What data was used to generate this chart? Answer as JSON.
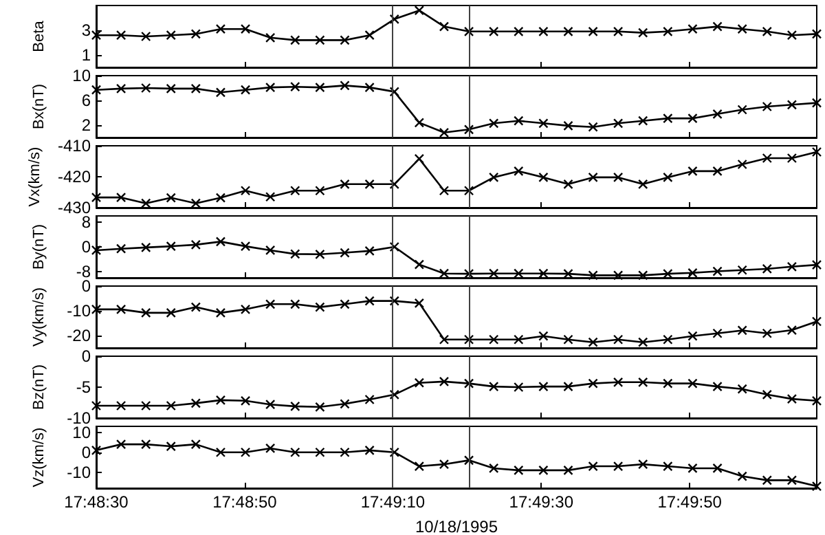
{
  "chart_data": [
    {
      "type": "line",
      "ylabel": "Beta",
      "color": "#000000",
      "marker": "cross",
      "line_style": "solid",
      "tick_labels": "y",
      "xlim": [
        17.80833,
        17.83532
      ],
      "xticks": [
        {
          "value": 17.80833,
          "label": null
        },
        {
          "value": 17.81389,
          "label": null
        },
        {
          "value": 17.81944,
          "label": null
        },
        {
          "value": 17.825,
          "label": null
        },
        {
          "value": 17.83056,
          "label": null
        }
      ],
      "ylim": [
        0,
        5
      ],
      "yticks": [
        1,
        3
      ],
      "x": [
        17.80833,
        17.80926,
        17.81019,
        17.81113,
        17.81206,
        17.81299,
        17.81392,
        17.81485,
        17.81578,
        17.81671,
        17.81764,
        17.81857,
        17.8195,
        17.82043,
        17.82136,
        17.82229,
        17.82322,
        17.82415,
        17.82508,
        17.82601,
        17.82694,
        17.82788,
        17.82881,
        17.82974,
        17.83067,
        17.8316,
        17.83253,
        17.83346,
        17.83439,
        17.83532
      ],
      "values": [
        2.6,
        2.6,
        2.5,
        2.6,
        2.7,
        3.1,
        3.1,
        2.4,
        2.2,
        2.2,
        2.2,
        2.6,
        3.9,
        4.6,
        3.3,
        2.9,
        2.9,
        2.9,
        2.9,
        2.9,
        2.9,
        2.9,
        2.8,
        2.9,
        3.1,
        3.3,
        3.1,
        2.9,
        2.6,
        2.7
      ],
      "ref_lines": [
        {
          "axis": "x",
          "value": 17.81942,
          "color": "#404040"
        },
        {
          "axis": "x",
          "value": 17.82231,
          "color": "#404040"
        }
      ]
    },
    {
      "type": "line",
      "ylabel": "Bx(nT)",
      "color": "#000000",
      "marker": "cross",
      "line_style": "solid",
      "tick_labels": "y",
      "xlim": [
        17.80833,
        17.83532
      ],
      "xticks": [
        {
          "value": 17.80833,
          "label": null
        },
        {
          "value": 17.81389,
          "label": null
        },
        {
          "value": 17.81944,
          "label": null
        },
        {
          "value": 17.825,
          "label": null
        },
        {
          "value": 17.83056,
          "label": null
        }
      ],
      "ylim": [
        0,
        10
      ],
      "yticks": [
        2,
        6,
        10
      ],
      "x": [
        17.80833,
        17.80926,
        17.81019,
        17.81113,
        17.81206,
        17.81299,
        17.81392,
        17.81485,
        17.81578,
        17.81671,
        17.81764,
        17.81857,
        17.8195,
        17.82043,
        17.82136,
        17.82229,
        17.82322,
        17.82415,
        17.82508,
        17.82601,
        17.82694,
        17.82788,
        17.82881,
        17.82974,
        17.83067,
        17.8316,
        17.83253,
        17.83346,
        17.83439,
        17.83532
      ],
      "values": [
        7.7,
        7.9,
        8.0,
        7.9,
        7.9,
        7.3,
        7.7,
        8.1,
        8.2,
        8.1,
        8.4,
        8.1,
        7.4,
        2.4,
        0.8,
        1.3,
        2.3,
        2.7,
        2.3,
        1.9,
        1.7,
        2.3,
        2.7,
        3.1,
        3.1,
        3.8,
        4.5,
        5.0,
        5.3,
        5.6
      ],
      "ref_lines": [
        {
          "axis": "x",
          "value": 17.81942,
          "color": "#404040"
        },
        {
          "axis": "x",
          "value": 17.82231,
          "color": "#404040"
        }
      ]
    },
    {
      "type": "line",
      "ylabel": "Vx(km/s)",
      "color": "#000000",
      "marker": "cross",
      "line_style": "solid",
      "tick_labels": "y",
      "xlim": [
        17.80833,
        17.83532
      ],
      "xticks": [
        {
          "value": 17.80833,
          "label": null
        },
        {
          "value": 17.81389,
          "label": null
        },
        {
          "value": 17.81944,
          "label": null
        },
        {
          "value": 17.825,
          "label": null
        },
        {
          "value": 17.83056,
          "label": null
        }
      ],
      "ylim": [
        -430,
        -410
      ],
      "yticks": [
        -430,
        -420,
        -410
      ],
      "x": [
        17.80833,
        17.80926,
        17.81019,
        17.81113,
        17.81206,
        17.81299,
        17.81392,
        17.81485,
        17.81578,
        17.81671,
        17.81764,
        17.81857,
        17.8195,
        17.82043,
        17.82136,
        17.82229,
        17.82322,
        17.82415,
        17.82508,
        17.82601,
        17.82694,
        17.82788,
        17.82881,
        17.82974,
        17.83067,
        17.8316,
        17.83253,
        17.83346,
        17.83439,
        17.83532
      ],
      "values": [
        -426.7,
        -426.7,
        -428.6,
        -426.8,
        -428.6,
        -426.8,
        -424.5,
        -426.5,
        -424.5,
        -424.5,
        -422.4,
        -422.4,
        -422.4,
        -414.2,
        -424.5,
        -424.5,
        -420.2,
        -418.2,
        -420.2,
        -422.4,
        -420.2,
        -420.2,
        -422.4,
        -420.2,
        -418.2,
        -418.2,
        -416,
        -414,
        -414,
        -412
      ],
      "ref_lines": [
        {
          "axis": "x",
          "value": 17.81942,
          "color": "#404040"
        },
        {
          "axis": "x",
          "value": 17.82231,
          "color": "#404040"
        }
      ]
    },
    {
      "type": "line",
      "ylabel": "By(nT)",
      "color": "#000000",
      "marker": "cross",
      "line_style": "solid",
      "tick_labels": "y",
      "xlim": [
        17.80833,
        17.83532
      ],
      "xticks": [
        {
          "value": 17.80833,
          "label": null
        },
        {
          "value": 17.81389,
          "label": null
        },
        {
          "value": 17.81944,
          "label": null
        },
        {
          "value": 17.825,
          "label": null
        },
        {
          "value": 17.83056,
          "label": null
        }
      ],
      "ylim": [
        -10,
        10
      ],
      "yticks": [
        -8,
        0,
        8
      ],
      "x": [
        17.80833,
        17.80926,
        17.81019,
        17.81113,
        17.81206,
        17.81299,
        17.81392,
        17.81485,
        17.81578,
        17.81671,
        17.81764,
        17.81857,
        17.8195,
        17.82043,
        17.82136,
        17.82229,
        17.82322,
        17.82415,
        17.82508,
        17.82601,
        17.82694,
        17.82788,
        17.82881,
        17.82974,
        17.83067,
        17.8316,
        17.83253,
        17.83346,
        17.83439,
        17.83532
      ],
      "values": [
        -1.1,
        -0.6,
        -0.2,
        0.2,
        0.7,
        1.7,
        0.2,
        -1.1,
        -2.3,
        -2.4,
        -1.9,
        -1.3,
        0,
        -5.7,
        -8.6,
        -8.7,
        -8.6,
        -8.6,
        -8.6,
        -8.7,
        -9.2,
        -9.2,
        -9.2,
        -8.7,
        -8.4,
        -7.9,
        -7.5,
        -7.1,
        -6.4,
        -5.8
      ],
      "ref_lines": [
        {
          "axis": "x",
          "value": 17.81942,
          "color": "#404040"
        },
        {
          "axis": "x",
          "value": 17.82231,
          "color": "#404040"
        }
      ]
    },
    {
      "type": "line",
      "ylabel": "Vy(km/s)",
      "color": "#000000",
      "marker": "cross",
      "line_style": "solid",
      "tick_labels": "y",
      "xlim": [
        17.80833,
        17.83532
      ],
      "xticks": [
        {
          "value": 17.80833,
          "label": null
        },
        {
          "value": 17.81389,
          "label": null
        },
        {
          "value": 17.81944,
          "label": null
        },
        {
          "value": 17.825,
          "label": null
        },
        {
          "value": 17.83056,
          "label": null
        }
      ],
      "ylim": [
        -25,
        0
      ],
      "yticks": [
        -20,
        -10,
        0
      ],
      "x": [
        17.80833,
        17.80926,
        17.81019,
        17.81113,
        17.81206,
        17.81299,
        17.81392,
        17.81485,
        17.81578,
        17.81671,
        17.81764,
        17.81857,
        17.8195,
        17.82043,
        17.82136,
        17.82229,
        17.82322,
        17.82415,
        17.82508,
        17.82601,
        17.82694,
        17.82788,
        17.82881,
        17.82974,
        17.83067,
        17.8316,
        17.83253,
        17.83346,
        17.83439,
        17.83532
      ],
      "values": [
        -9.4,
        -9.4,
        -10.8,
        -10.8,
        -8.5,
        -10.8,
        -9.4,
        -7.3,
        -7.3,
        -8.5,
        -7.3,
        -6,
        -6,
        -6.9,
        -21.6,
        -21.6,
        -21.6,
        -21.6,
        -20.2,
        -21.6,
        -22.7,
        -21.6,
        -22.7,
        -21.6,
        -20.2,
        -19.1,
        -17.9,
        -19.1,
        -17.8,
        -14.3
      ],
      "ref_lines": [
        {
          "axis": "x",
          "value": 17.81942,
          "color": "#404040"
        },
        {
          "axis": "x",
          "value": 17.82231,
          "color": "#404040"
        }
      ]
    },
    {
      "type": "line",
      "ylabel": "Bz(nT)",
      "color": "#000000",
      "marker": "cross",
      "line_style": "solid",
      "tick_labels": "y",
      "xlim": [
        17.80833,
        17.83532
      ],
      "xticks": [
        {
          "value": 17.80833,
          "label": null
        },
        {
          "value": 17.81389,
          "label": null
        },
        {
          "value": 17.81944,
          "label": null
        },
        {
          "value": 17.825,
          "label": null
        },
        {
          "value": 17.83056,
          "label": null
        }
      ],
      "ylim": [
        -10,
        0
      ],
      "yticks": [
        -10,
        -5,
        0
      ],
      "x": [
        17.80833,
        17.80926,
        17.81019,
        17.81113,
        17.81206,
        17.81299,
        17.81392,
        17.81485,
        17.81578,
        17.81671,
        17.81764,
        17.81857,
        17.8195,
        17.82043,
        17.82136,
        17.82229,
        17.82322,
        17.82415,
        17.82508,
        17.82601,
        17.82694,
        17.82788,
        17.82881,
        17.82974,
        17.83067,
        17.8316,
        17.83253,
        17.83346,
        17.83439,
        17.83532
      ],
      "values": [
        -8.0,
        -8.0,
        -8.0,
        -8.0,
        -7.6,
        -7.1,
        -7.2,
        -7.8,
        -8.1,
        -8.2,
        -7.7,
        -7.0,
        -6.2,
        -4.3,
        -4.1,
        -4.4,
        -4.9,
        -5.0,
        -4.9,
        -4.9,
        -4.4,
        -4.2,
        -4.2,
        -4.4,
        -4.4,
        -4.9,
        -5.3,
        -6.2,
        -6.9,
        -7.2
      ],
      "ref_lines": [
        {
          "axis": "x",
          "value": 17.81942,
          "color": "#404040"
        },
        {
          "axis": "x",
          "value": 17.82231,
          "color": "#404040"
        }
      ]
    },
    {
      "type": "line",
      "ylabel": "Vz(km/s)",
      "xlabel": "10/18/1995",
      "color": "#000000",
      "marker": "cross",
      "line_style": "solid",
      "xlim": [
        17.80833,
        17.83532
      ],
      "xticks": [
        {
          "value": 17.80833,
          "label": "17:48:30"
        },
        {
          "value": 17.81389,
          "label": "17:48:50"
        },
        {
          "value": 17.81944,
          "label": "17:49:10"
        },
        {
          "value": 17.825,
          "label": "17:49:30"
        },
        {
          "value": 17.83056,
          "label": "17:49:50"
        }
      ],
      "ylim": [
        -18,
        13
      ],
      "yticks": [
        -10,
        0,
        10
      ],
      "x": [
        17.80833,
        17.80926,
        17.81019,
        17.81113,
        17.81206,
        17.81299,
        17.81392,
        17.81485,
        17.81578,
        17.81671,
        17.81764,
        17.81857,
        17.8195,
        17.82043,
        17.82136,
        17.82229,
        17.82322,
        17.82415,
        17.82508,
        17.82601,
        17.82694,
        17.82788,
        17.82881,
        17.82974,
        17.83067,
        17.8316,
        17.83253,
        17.83346,
        17.83439,
        17.83532
      ],
      "values": [
        1,
        4,
        4,
        3,
        4,
        0,
        0,
        2,
        0,
        0,
        0,
        1,
        0,
        -7,
        -6,
        -4,
        -8,
        -9,
        -9,
        -9,
        -7,
        -7,
        -6,
        -7,
        -8,
        -8,
        -12,
        -14,
        -14,
        -17
      ],
      "ref_lines": [
        {
          "axis": "x",
          "value": 17.81942,
          "color": "#404040"
        },
        {
          "axis": "x",
          "value": 17.82231,
          "color": "#404040"
        }
      ]
    }
  ]
}
